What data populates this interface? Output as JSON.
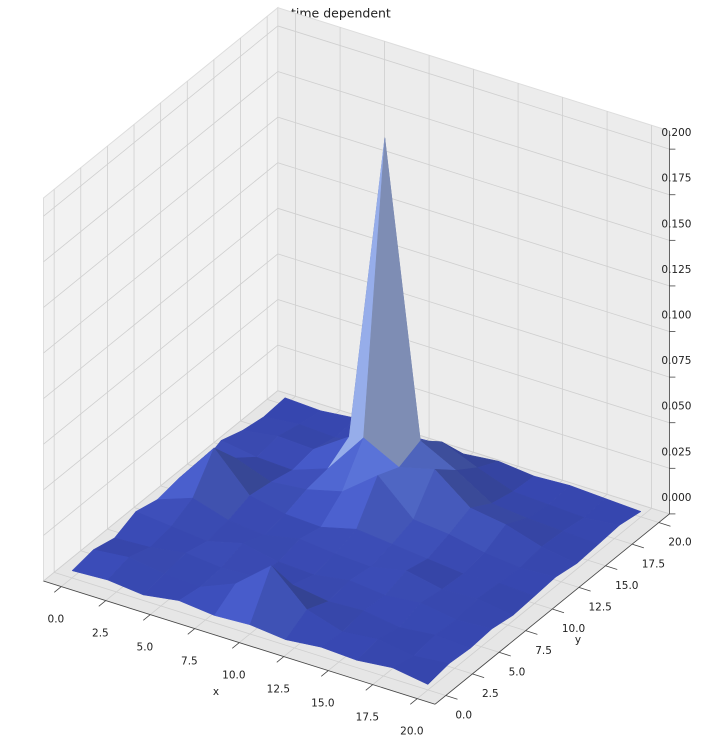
{
  "chart_data": {
    "type": "surface",
    "title": "time dependent",
    "x_label": "x",
    "y_label": "y",
    "colormap": "coolwarm",
    "x": [
      0,
      2,
      4,
      6,
      8,
      10,
      12,
      14,
      16,
      18,
      20
    ],
    "y": [
      0,
      2,
      4,
      6,
      8,
      10,
      12,
      14,
      16,
      18,
      20
    ],
    "z": [
      [
        0.004,
        0.006,
        0.003,
        0.008,
        0.005,
        0.007,
        0.004,
        0.009,
        0.005,
        0.003,
        0.004
      ],
      [
        0.005,
        0.008,
        0.004,
        0.006,
        0.012,
        0.03,
        0.015,
        0.006,
        0.008,
        0.005,
        0.003
      ],
      [
        0.003,
        0.005,
        0.007,
        0.004,
        0.006,
        0.01,
        0.008,
        0.005,
        0.007,
        0.004,
        0.005
      ],
      [
        0.006,
        0.004,
        0.005,
        0.009,
        0.004,
        0.006,
        0.01,
        0.012,
        0.02,
        0.006,
        0.004
      ],
      [
        0.004,
        0.012,
        0.006,
        0.005,
        0.008,
        0.005,
        0.015,
        0.035,
        0.19,
        0.015,
        0.005
      ],
      [
        0.005,
        0.028,
        0.008,
        0.004,
        0.006,
        0.01,
        0.03,
        0.025,
        0.03,
        0.02,
        0.004
      ],
      [
        0.003,
        0.01,
        0.005,
        0.007,
        0.005,
        0.008,
        0.012,
        0.03,
        0.02,
        0.012,
        0.006
      ],
      [
        0.005,
        0.004,
        0.006,
        0.005,
        0.009,
        0.006,
        0.01,
        0.015,
        0.008,
        0.005,
        0.004
      ],
      [
        0.004,
        0.006,
        0.003,
        0.007,
        0.005,
        0.004,
        0.006,
        0.012,
        0.006,
        0.004,
        0.005
      ],
      [
        0.006,
        0.003,
        0.005,
        0.004,
        0.006,
        0.005,
        0.004,
        0.006,
        0.005,
        0.003,
        0.004
      ],
      [
        0.003,
        0.005,
        0.004,
        0.005,
        0.003,
        0.004,
        0.005,
        0.003,
        0.004,
        0.005,
        0.003
      ]
    ],
    "xlim": [
      -1,
      21
    ],
    "ylim": [
      -1,
      21
    ],
    "zlim": [
      0,
      0.21
    ],
    "xticks": [
      {
        "value": 0,
        "label": "0.0"
      },
      {
        "value": 2.5,
        "label": "2.5"
      },
      {
        "value": 5,
        "label": "5.0"
      },
      {
        "value": 7.5,
        "label": "7.5"
      },
      {
        "value": 10,
        "label": "10.0"
      },
      {
        "value": 12.5,
        "label": "12.5"
      },
      {
        "value": 15,
        "label": "15.0"
      },
      {
        "value": 17.5,
        "label": "17.5"
      },
      {
        "value": 20,
        "label": "20.0"
      }
    ],
    "yticks": [
      {
        "value": 0,
        "label": "0.0"
      },
      {
        "value": 2.5,
        "label": "2.5"
      },
      {
        "value": 5,
        "label": "5.0"
      },
      {
        "value": 7.5,
        "label": "7.5"
      },
      {
        "value": 10,
        "label": "10.0"
      },
      {
        "value": 12.5,
        "label": "12.5"
      },
      {
        "value": 15,
        "label": "15.0"
      },
      {
        "value": 17.5,
        "label": "17.5"
      },
      {
        "value": 20,
        "label": "20.0"
      }
    ],
    "zticks": [
      {
        "value": 0,
        "label": "0.000"
      },
      {
        "value": 0.025,
        "label": "0.025"
      },
      {
        "value": 0.05,
        "label": "0.050"
      },
      {
        "value": 0.075,
        "label": "0.075"
      },
      {
        "value": 0.1,
        "label": "0.100"
      },
      {
        "value": 0.125,
        "label": "0.125"
      },
      {
        "value": 0.15,
        "label": "0.150"
      },
      {
        "value": 0.175,
        "label": "0.175"
      },
      {
        "value": 0.2,
        "label": "0.200"
      }
    ],
    "grid": true
  }
}
